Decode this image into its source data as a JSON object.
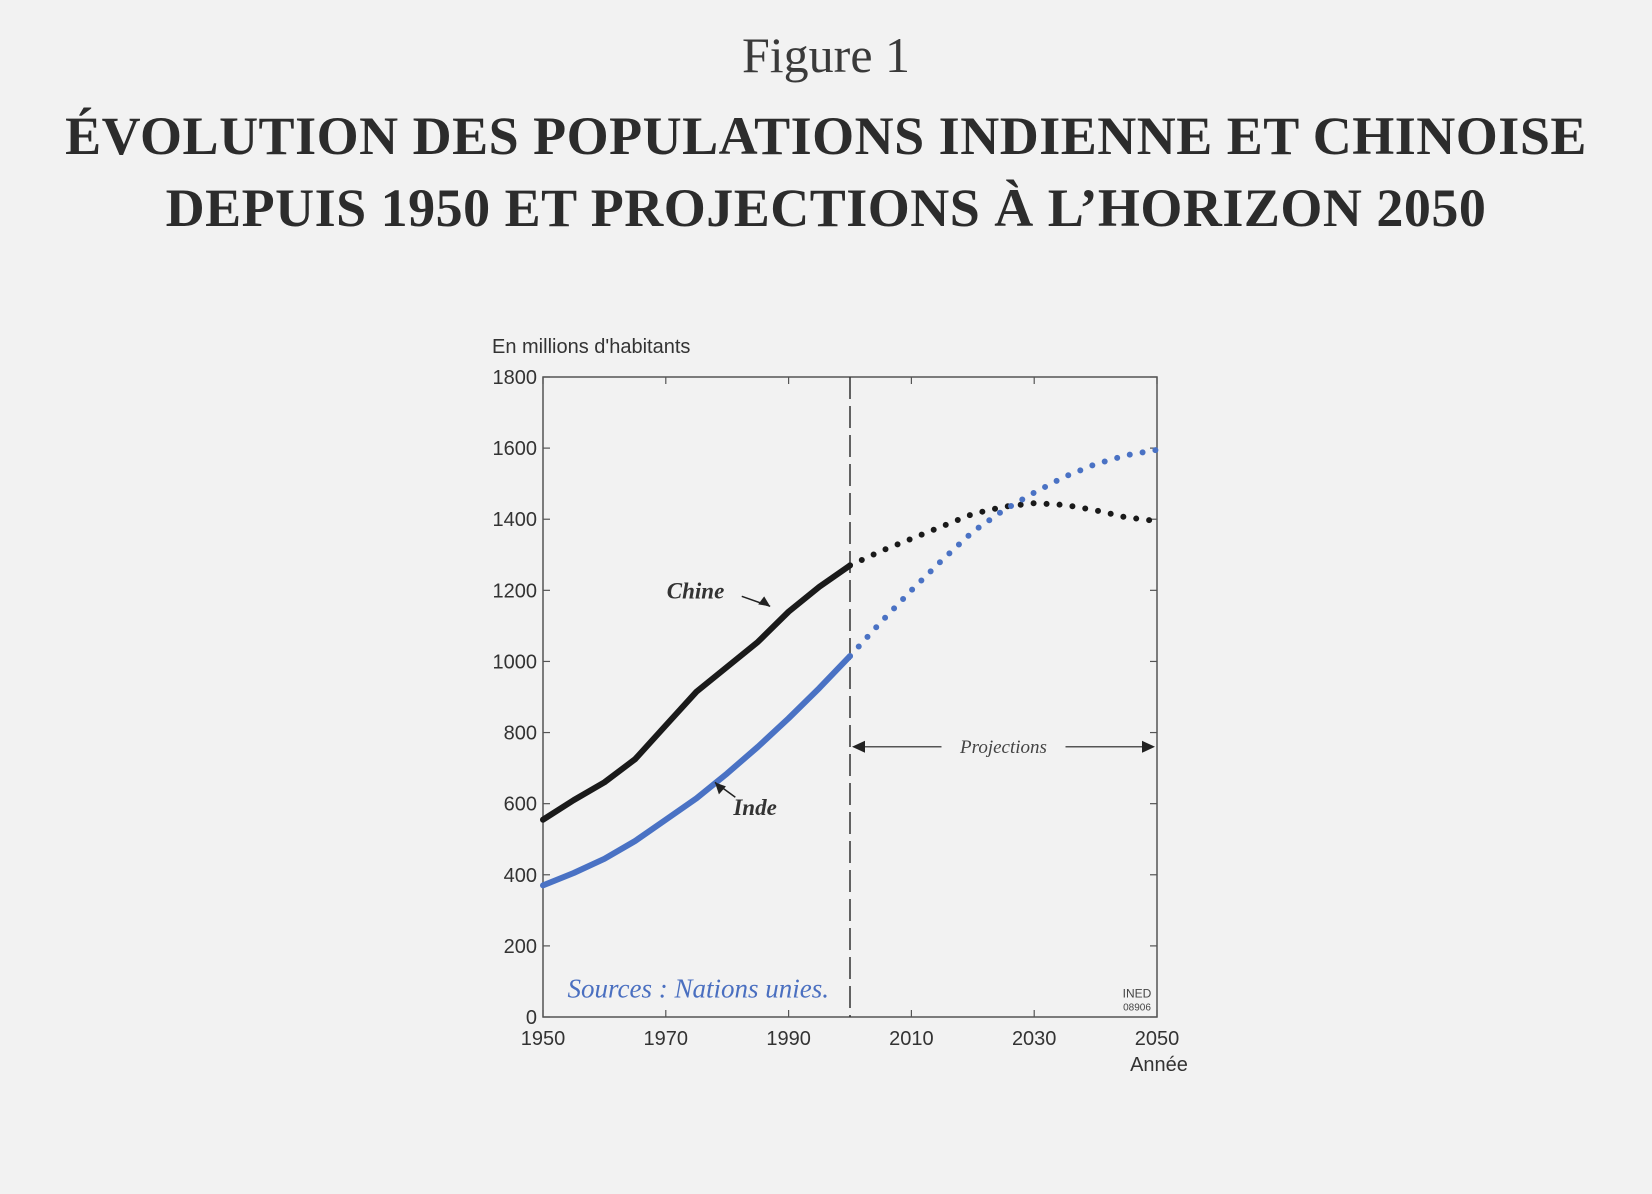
{
  "figure_number": "Figure 1",
  "title": "Évolution des populations indienne et chinoise depuis 1950 et projections à l’horizon 2050",
  "chart_data": {
    "type": "line",
    "ylabel": "En millions d'habitants",
    "xlabel": "Année",
    "xlim": [
      1950,
      2050
    ],
    "ylim": [
      0,
      1800
    ],
    "xticks": [
      1950,
      1970,
      1990,
      2010,
      2030,
      2050
    ],
    "yticks": [
      0,
      200,
      400,
      600,
      800,
      1000,
      1200,
      1400,
      1600,
      1800
    ],
    "projection_start": 2000,
    "projection_label": "Projections",
    "source": "Sources : Nations unies.",
    "credit": [
      "INED",
      "08906"
    ],
    "grid": false,
    "colors": {
      "chine": "#1a1a1a",
      "inde": "#4a72c4"
    },
    "series": [
      {
        "name": "Chine",
        "observed": {
          "x": [
            1950,
            1955,
            1960,
            1965,
            1970,
            1975,
            1980,
            1985,
            1990,
            1995,
            2000
          ],
          "y": [
            555,
            610,
            660,
            725,
            820,
            915,
            985,
            1055,
            1140,
            1210,
            1270
          ]
        },
        "projected": {
          "x": [
            2000,
            2005,
            2010,
            2015,
            2020,
            2025,
            2030,
            2035,
            2040,
            2045,
            2050
          ],
          "y": [
            1270,
            1310,
            1345,
            1380,
            1415,
            1435,
            1445,
            1440,
            1425,
            1405,
            1395
          ]
        }
      },
      {
        "name": "Inde",
        "observed": {
          "x": [
            1950,
            1955,
            1960,
            1965,
            1970,
            1975,
            1980,
            1985,
            1990,
            1995,
            2000
          ],
          "y": [
            370,
            405,
            445,
            495,
            555,
            615,
            685,
            760,
            840,
            925,
            1015
          ]
        },
        "projected": {
          "x": [
            2000,
            2005,
            2010,
            2015,
            2020,
            2025,
            2030,
            2035,
            2040,
            2045,
            2050
          ],
          "y": [
            1015,
            1110,
            1200,
            1285,
            1365,
            1425,
            1475,
            1520,
            1555,
            1580,
            1595
          ]
        }
      }
    ]
  }
}
